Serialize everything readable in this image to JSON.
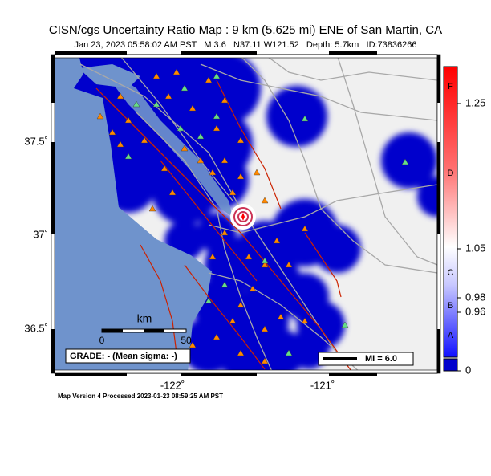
{
  "header": {
    "title": "CISN/cgs Uncertainty Ratio Map : 9 km (5.625 mi) ENE of San Martin, CA",
    "subtitle": "Jan 23, 2023 05:58:02 AM PST   M 3.6   N37.11 W121.52   Depth: 5.7km   ID:73836266"
  },
  "map": {
    "lat_labels": [
      "37.5˚",
      "37˚",
      "36.5˚"
    ],
    "lon_labels": [
      "-122˚",
      "-121˚"
    ],
    "scale_bar": {
      "unit": "km",
      "labels": [
        "0",
        "50"
      ]
    },
    "grade": "GRADE: - (Mean sigma: -)",
    "legend": "MI = 6.0"
  },
  "colorbar": {
    "grades": [
      "F",
      "D",
      "C",
      "B",
      "A"
    ],
    "ticks": [
      "1.25",
      "1.05",
      "0.98",
      "0.96",
      "0"
    ]
  },
  "footer": "Map Version 4 Processed 2023-01-23 08:59:25 AM PST"
}
